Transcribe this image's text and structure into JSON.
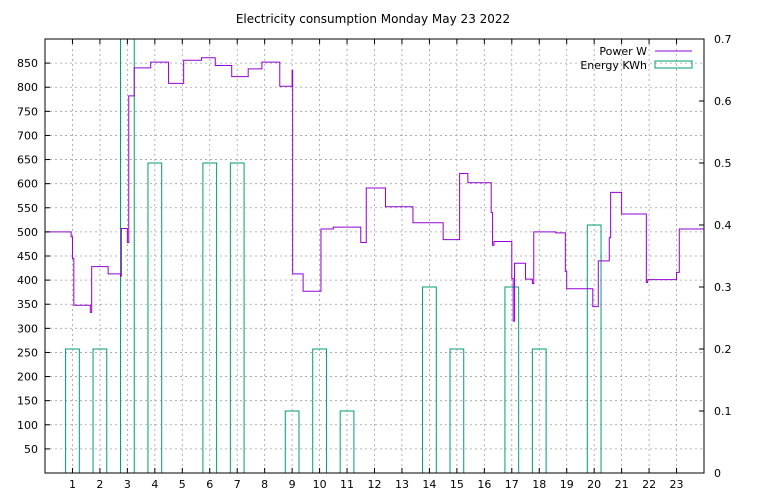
{
  "chart_data": {
    "type": "bar+line",
    "title": "Electricity consumption Monday May 23 2022",
    "xlabel": "",
    "ylabel": "",
    "y2label": "",
    "xlim": [
      0,
      24
    ],
    "ylim": [
      0,
      900
    ],
    "y2lim": [
      0,
      0.7
    ],
    "grid": true,
    "legend_position": "top-right",
    "x_ticks": [
      1,
      2,
      3,
      4,
      5,
      6,
      7,
      8,
      9,
      10,
      11,
      12,
      13,
      14,
      15,
      16,
      17,
      18,
      19,
      20,
      21,
      22,
      23
    ],
    "y_ticks": [
      50,
      100,
      150,
      200,
      250,
      300,
      350,
      400,
      450,
      500,
      550,
      600,
      650,
      700,
      750,
      800,
      850
    ],
    "y2_ticks": [
      0,
      0.1,
      0.2,
      0.3,
      0.4,
      0.5,
      0.6,
      0.7
    ],
    "series": [
      {
        "name": "Power W",
        "kind": "step-line",
        "axis": "left",
        "color": "#9400d3",
        "points": [
          [
            0,
            500
          ],
          [
            0.95,
            500
          ],
          [
            0.95,
            490
          ],
          [
            1.0,
            490
          ],
          [
            1.0,
            445
          ],
          [
            1.05,
            445
          ],
          [
            1.05,
            348
          ],
          [
            1.65,
            348
          ],
          [
            1.65,
            333
          ],
          [
            1.7,
            333
          ],
          [
            1.7,
            428
          ],
          [
            2.3,
            428
          ],
          [
            2.3,
            413
          ],
          [
            2.75,
            413
          ],
          [
            2.75,
            408
          ],
          [
            2.78,
            408
          ],
          [
            2.78,
            507
          ],
          [
            3.0,
            507
          ],
          [
            3.0,
            478
          ],
          [
            3.05,
            478
          ],
          [
            3.05,
            782
          ],
          [
            3.25,
            782
          ],
          [
            3.25,
            840
          ],
          [
            3.85,
            840
          ],
          [
            3.85,
            852
          ],
          [
            4.5,
            852
          ],
          [
            4.5,
            808
          ],
          [
            5.05,
            808
          ],
          [
            5.05,
            856
          ],
          [
            5.7,
            856
          ],
          [
            5.7,
            861
          ],
          [
            6.2,
            861
          ],
          [
            6.2,
            845
          ],
          [
            6.8,
            845
          ],
          [
            6.8,
            822
          ],
          [
            7.4,
            822
          ],
          [
            7.4,
            838
          ],
          [
            7.9,
            838
          ],
          [
            7.9,
            852
          ],
          [
            8.55,
            852
          ],
          [
            8.55,
            802
          ],
          [
            9.0,
            802
          ],
          [
            9.0,
            835
          ],
          [
            9.02,
            835
          ],
          [
            9.02,
            413
          ],
          [
            9.4,
            413
          ],
          [
            9.4,
            377
          ],
          [
            10.05,
            377
          ],
          [
            10.05,
            506
          ],
          [
            10.5,
            506
          ],
          [
            10.5,
            510
          ],
          [
            11.5,
            510
          ],
          [
            11.5,
            478
          ],
          [
            11.7,
            478
          ],
          [
            11.7,
            591
          ],
          [
            12.4,
            591
          ],
          [
            12.4,
            552
          ],
          [
            13.4,
            552
          ],
          [
            13.4,
            519
          ],
          [
            14.5,
            519
          ],
          [
            14.5,
            484
          ],
          [
            15.1,
            484
          ],
          [
            15.1,
            621
          ],
          [
            15.4,
            621
          ],
          [
            15.4,
            602
          ],
          [
            16.25,
            602
          ],
          [
            16.25,
            540
          ],
          [
            16.3,
            540
          ],
          [
            16.3,
            472
          ],
          [
            16.35,
            472
          ],
          [
            16.35,
            480
          ],
          [
            17.0,
            480
          ],
          [
            17.0,
            403
          ],
          [
            17.05,
            403
          ],
          [
            17.05,
            315
          ],
          [
            17.1,
            315
          ],
          [
            17.1,
            435
          ],
          [
            17.5,
            435
          ],
          [
            17.5,
            402
          ],
          [
            17.75,
            402
          ],
          [
            17.75,
            393
          ],
          [
            17.8,
            393
          ],
          [
            17.8,
            500
          ],
          [
            18.6,
            500
          ],
          [
            18.6,
            498
          ],
          [
            18.95,
            498
          ],
          [
            18.95,
            418
          ],
          [
            19.0,
            418
          ],
          [
            19.0,
            382
          ],
          [
            19.95,
            382
          ],
          [
            19.95,
            345
          ],
          [
            20.15,
            345
          ],
          [
            20.15,
            440
          ],
          [
            20.55,
            440
          ],
          [
            20.55,
            488
          ],
          [
            20.6,
            488
          ],
          [
            20.6,
            582
          ],
          [
            21.0,
            582
          ],
          [
            21.0,
            537
          ],
          [
            21.9,
            537
          ],
          [
            21.9,
            395
          ],
          [
            21.95,
            395
          ],
          [
            21.95,
            401
          ],
          [
            23.0,
            401
          ],
          [
            23.0,
            416
          ],
          [
            23.1,
            416
          ],
          [
            23.1,
            506
          ],
          [
            24.0,
            506
          ]
        ]
      },
      {
        "name": "Energy KWh",
        "kind": "bar",
        "axis": "right",
        "color": "#009e73",
        "x": [
          1,
          2,
          3,
          4,
          5,
          6,
          7,
          8,
          9,
          10,
          11,
          12,
          13,
          14,
          15,
          16,
          17,
          18,
          19,
          20,
          21,
          22,
          23
        ],
        "values": [
          0.2,
          0.2,
          0.7,
          0.5,
          0,
          0.5,
          0.5,
          0,
          0.1,
          0.2,
          0.1,
          0,
          0,
          0.3,
          0.2,
          0,
          0.3,
          0.2,
          0,
          0.4,
          0,
          0,
          0
        ]
      }
    ]
  }
}
